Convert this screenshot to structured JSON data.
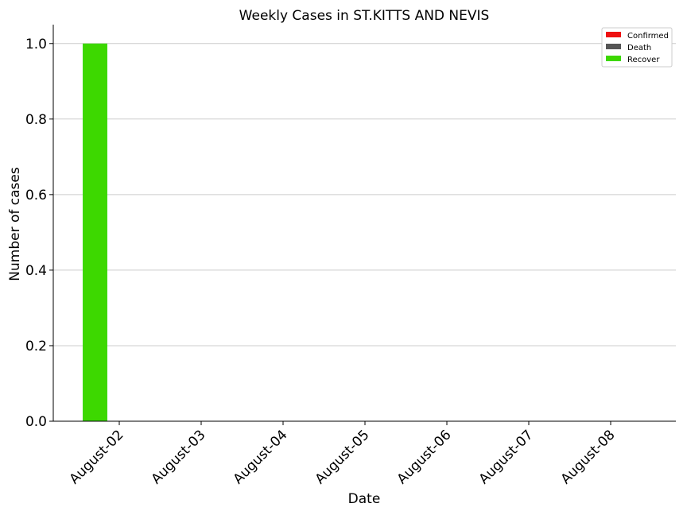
{
  "chart_data": {
    "type": "bar",
    "title": "Weekly Cases in ST.KITTS AND NEVIS",
    "xlabel": "Date",
    "ylabel": "Number of cases",
    "categories": [
      "August-02",
      "August-03",
      "August-04",
      "August-05",
      "August-06",
      "August-07",
      "August-08"
    ],
    "ylim": [
      0,
      1.05
    ],
    "yticks": [
      "0.0",
      "0.2",
      "0.4",
      "0.6",
      "0.8",
      "1.0"
    ],
    "grid": "horizontal",
    "legend_position": "top-right",
    "series": [
      {
        "name": "Confirmed",
        "color": "#ee1111",
        "values": [
          0,
          0,
          0,
          0,
          0,
          0,
          0
        ]
      },
      {
        "name": "Death",
        "color": "#555555",
        "values": [
          0,
          0,
          0,
          0,
          0,
          0,
          0
        ]
      },
      {
        "name": "Recover",
        "color": "#3dd800",
        "values": [
          1,
          0,
          0,
          0,
          0,
          0,
          0
        ]
      }
    ]
  }
}
